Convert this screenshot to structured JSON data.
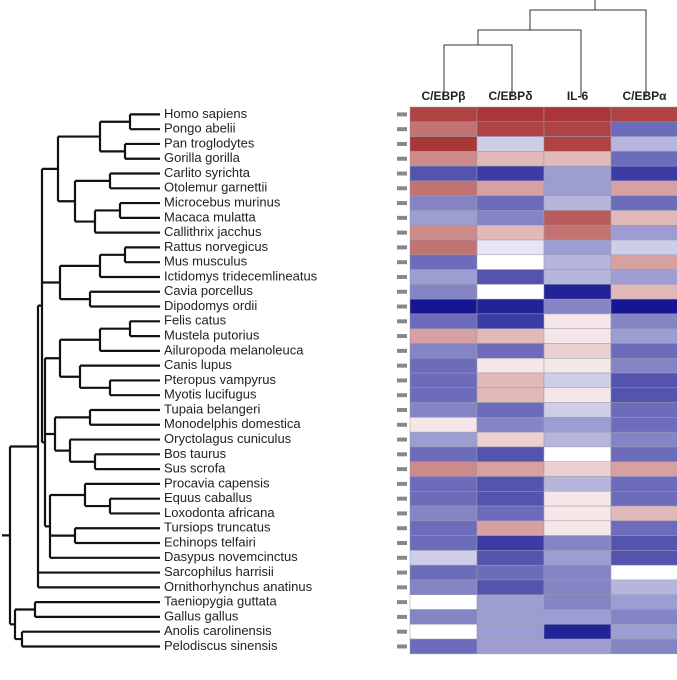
{
  "chart_data": {
    "type": "heatmap",
    "columns": [
      "C/EBPβ",
      "C/EBPδ",
      "IL-6",
      "C/EBPα"
    ],
    "rows": [
      "Homo sapiens",
      "Pongo abelii",
      "Pan troglodytes",
      "Gorilla gorilla",
      "Carlito syrichta",
      "Otolemur garnettii",
      "Microcebus murinus",
      "Macaca mulatta",
      "Callithrix jacchus",
      "Rattus norvegicus",
      "Mus musculus",
      "Ictidomys tridecemlineatus",
      "Cavia porcellus",
      "Dipodomys ordii",
      "Felis catus",
      "Mustela putorius",
      "Ailuropoda melanoleuca",
      "Canis lupus",
      "Pteropus vampyrus",
      "Myotis lucifugus",
      "Tupaia belangeri",
      "Monodelphis domestica",
      "Oryctolagus cuniculus",
      "Bos taurus",
      "Sus scrofa",
      "Procavia capensis",
      "Equus caballus",
      "Loxodonta africana",
      "Tursiops truncatus",
      "Echinops telfairi",
      "Dasypus novemcinctus",
      "Sarcophilus harrisii",
      "Ornithorhynchus anatinus",
      "Taeniopygia guttata",
      "Gallus gallus",
      "Anolis carolinensis",
      "Pelodiscus sinensis"
    ],
    "values": [
      [
        0.8,
        0.85,
        0.85,
        0.8
      ],
      [
        0.6,
        0.8,
        0.8,
        -0.6
      ],
      [
        0.85,
        -0.2,
        0.8,
        -0.3
      ],
      [
        0.5,
        0.3,
        0.3,
        -0.6
      ],
      [
        -0.7,
        -0.8,
        -0.4,
        -0.8
      ],
      [
        0.6,
        0.4,
        -0.4,
        0.4
      ],
      [
        -0.5,
        -0.6,
        -0.3,
        -0.6
      ],
      [
        -0.4,
        -0.5,
        0.7,
        0.3
      ],
      [
        0.5,
        0.3,
        0.6,
        -0.4
      ],
      [
        0.6,
        -0.1,
        -0.4,
        -0.2
      ],
      [
        -0.6,
        0.0,
        -0.3,
        0.4
      ],
      [
        -0.4,
        -0.7,
        -0.3,
        -0.4
      ],
      [
        -0.5,
        0.0,
        -0.9,
        0.3
      ],
      [
        -0.95,
        -0.9,
        -0.5,
        -0.95
      ],
      [
        -0.6,
        -0.8,
        0.1,
        -0.5
      ],
      [
        0.4,
        0.3,
        0.1,
        -0.4
      ],
      [
        -0.5,
        -0.6,
        0.2,
        -0.6
      ],
      [
        -0.6,
        0.1,
        0.1,
        -0.5
      ],
      [
        -0.6,
        0.3,
        -0.2,
        -0.7
      ],
      [
        -0.6,
        0.3,
        0.1,
        -0.7
      ],
      [
        -0.5,
        -0.6,
        -0.2,
        -0.6
      ],
      [
        0.1,
        -0.5,
        -0.4,
        -0.6
      ],
      [
        -0.4,
        0.2,
        -0.3,
        -0.5
      ],
      [
        -0.6,
        -0.7,
        0.0,
        -0.6
      ],
      [
        0.5,
        0.4,
        0.2,
        0.4
      ],
      [
        -0.6,
        -0.7,
        -0.3,
        -0.6
      ],
      [
        -0.6,
        -0.7,
        0.1,
        -0.6
      ],
      [
        -0.5,
        -0.6,
        0.1,
        0.3
      ],
      [
        -0.6,
        0.4,
        0.1,
        -0.6
      ],
      [
        -0.6,
        -0.8,
        -0.5,
        -0.7
      ],
      [
        -0.2,
        -0.7,
        -0.4,
        -0.7
      ],
      [
        -0.6,
        -0.6,
        -0.5,
        0.0
      ],
      [
        -0.5,
        -0.7,
        -0.5,
        -0.3
      ],
      [
        0.0,
        -0.4,
        -0.5,
        -0.4
      ],
      [
        -0.5,
        -0.4,
        -0.4,
        -0.5
      ],
      [
        0.0,
        -0.4,
        -0.9,
        -0.4
      ],
      [
        -0.6,
        -0.4,
        -0.4,
        -0.5
      ]
    ],
    "zlim": [
      -1,
      1
    ],
    "colors": {
      "low": "#0a0a8c",
      "mid": "#ffffff",
      "high": "#9b1414"
    }
  }
}
